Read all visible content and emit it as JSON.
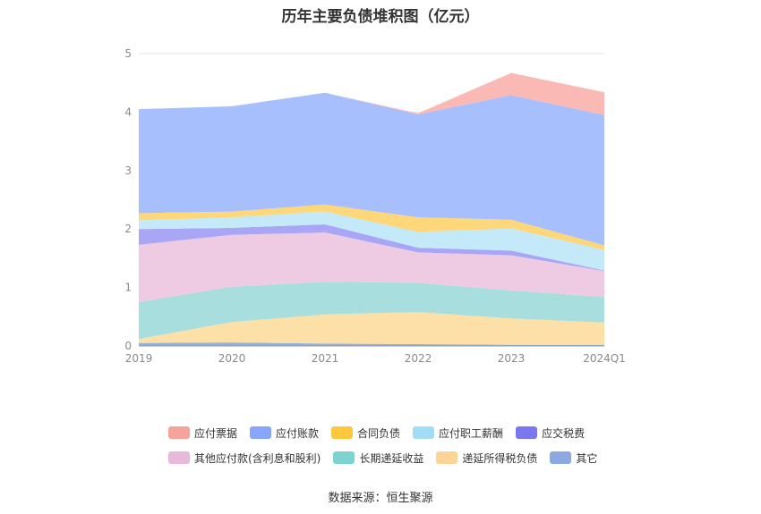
{
  "chart_data": {
    "type": "area",
    "stacked": true,
    "title": "历年主要负债堆积图（亿元）",
    "categories": [
      "2019",
      "2020",
      "2021",
      "2022",
      "2023",
      "2024Q1"
    ],
    "ylim": [
      0,
      5
    ],
    "yticks": [
      "0",
      "1",
      "2",
      "3",
      "4",
      "5"
    ],
    "grid": true,
    "legend_position": "bottom",
    "series": [
      {
        "name": "其它",
        "color": "#8fb0e0",
        "values": [
          0.05,
          0.06,
          0.04,
          0.03,
          0.02,
          0.02
        ]
      },
      {
        "name": "递延所得税负债",
        "color": "#fddfa8",
        "values": [
          0.07,
          0.35,
          0.5,
          0.55,
          0.45,
          0.38
        ]
      },
      {
        "name": "长期递延收益",
        "color": "#a8dfde",
        "values": [
          0.63,
          0.6,
          0.56,
          0.5,
          0.48,
          0.44
        ]
      },
      {
        "name": "其他应付款(含利息和股利)",
        "color": "#eecbe3",
        "values": [
          0.98,
          0.89,
          0.84,
          0.52,
          0.6,
          0.44
        ]
      },
      {
        "name": "应交税费",
        "color": "#a9a6f6",
        "values": [
          0.27,
          0.12,
          0.14,
          0.08,
          0.08,
          0.01
        ]
      },
      {
        "name": "应付职工薪酬",
        "color": "#c4e9f8",
        "values": [
          0.15,
          0.18,
          0.22,
          0.27,
          0.38,
          0.35
        ]
      },
      {
        "name": "合同负债",
        "color": "#fdd77a",
        "values": [
          0.12,
          0.1,
          0.12,
          0.25,
          0.15,
          0.08
        ]
      },
      {
        "name": "应付账款",
        "color": "#a7bffd",
        "values": [
          1.78,
          1.8,
          1.91,
          1.76,
          2.13,
          2.23
        ]
      },
      {
        "name": "应付票据",
        "color": "#fab9b4",
        "values": [
          0.0,
          0.0,
          0.0,
          0.02,
          0.38,
          0.39
        ]
      }
    ]
  },
  "legend": {
    "rows": [
      [
        {
          "label": "应付票据",
          "color": "#f5a39b"
        },
        {
          "label": "应付账款",
          "color": "#88a7fb"
        },
        {
          "label": "合同负债",
          "color": "#fdc83e"
        },
        {
          "label": "应付职工薪酬",
          "color": "#a3dcf6"
        },
        {
          "label": "应交税费",
          "color": "#7b78ef"
        }
      ],
      [
        {
          "label": "其他应付款(含利息和股利)",
          "color": "#e9b9d9"
        },
        {
          "label": "长期递延收益",
          "color": "#7dd3cf"
        },
        {
          "label": "递延所得税负债",
          "color": "#fcd596"
        },
        {
          "label": "其它",
          "color": "#8caadf"
        }
      ]
    ]
  },
  "source": "数据来源：恒生聚源"
}
